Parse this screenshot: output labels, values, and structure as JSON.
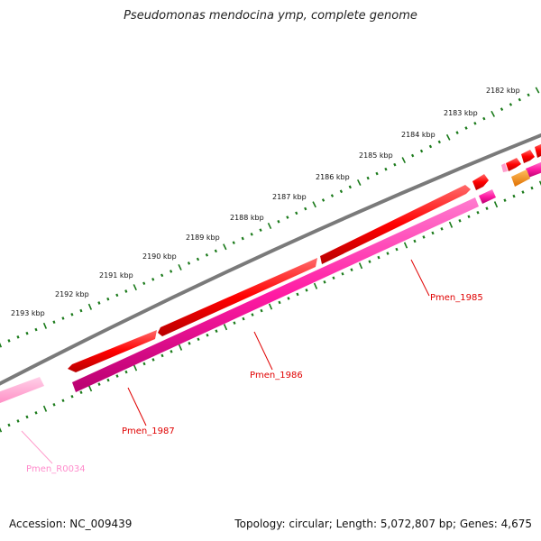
{
  "title": "Pseudomonas mendocina ymp, complete genome",
  "footer": {
    "accession": "Accession: NC_009439",
    "summary": "Topology: circular; Length: 5,072,807 bp; Genes: 4,675"
  },
  "colors": {
    "backbone": "#808080",
    "cds": "#ff0000",
    "gene": "#ff1aa3",
    "rna_gene": "#ff9ccc",
    "other_feature": "#ff8c00",
    "tick": "#1a7a1a",
    "cds_label": "#e00000",
    "rna_label": "#ff8ccc"
  },
  "scale": {
    "ticks": [
      {
        "kbp": 2182,
        "label": "2182 kbp"
      },
      {
        "kbp": 2183,
        "label": "2183 kbp"
      },
      {
        "kbp": 2184,
        "label": "2184 kbp"
      },
      {
        "kbp": 2185,
        "label": "2185 kbp"
      },
      {
        "kbp": 2186,
        "label": "2186 kbp"
      },
      {
        "kbp": 2187,
        "label": "2187 kbp"
      },
      {
        "kbp": 2188,
        "label": "2188 kbp"
      },
      {
        "kbp": 2189,
        "label": "2189 kbp"
      },
      {
        "kbp": 2190,
        "label": "2190 kbp"
      },
      {
        "kbp": 2191,
        "label": "2191 kbp"
      },
      {
        "kbp": 2192,
        "label": "2192 kbp"
      },
      {
        "kbp": 2193,
        "label": "2193 kbp"
      }
    ]
  },
  "features": {
    "labels": [
      {
        "name": "Pmen_1985",
        "kind": "cds"
      },
      {
        "name": "Pmen_1986",
        "kind": "cds"
      },
      {
        "name": "Pmen_1987",
        "kind": "cds"
      },
      {
        "name": "Pmen_R0034",
        "kind": "rna"
      }
    ]
  }
}
